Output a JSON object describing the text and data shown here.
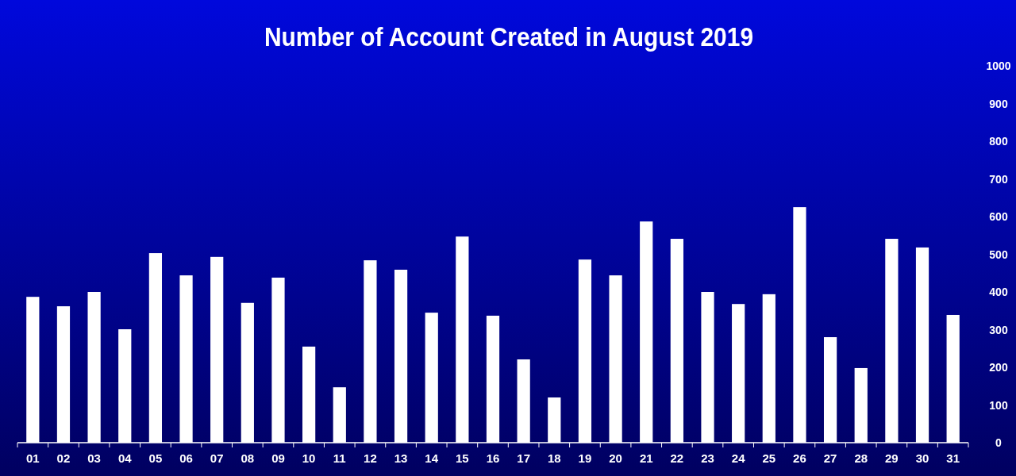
{
  "chart_data": {
    "type": "bar",
    "title": "Number of Account Created in August 2019",
    "categories": [
      "01",
      "02",
      "03",
      "04",
      "05",
      "06",
      "07",
      "08",
      "09",
      "10",
      "11",
      "12",
      "13",
      "14",
      "15",
      "16",
      "17",
      "18",
      "19",
      "20",
      "21",
      "22",
      "23",
      "24",
      "25",
      "26",
      "27",
      "28",
      "29",
      "30",
      "31"
    ],
    "values": [
      387,
      362,
      400,
      301,
      503,
      444,
      493,
      371,
      438,
      255,
      147,
      484,
      459,
      345,
      547,
      337,
      221,
      120,
      486,
      444,
      587,
      541,
      400,
      368,
      394,
      625,
      280,
      198,
      541,
      518,
      339
    ],
    "color": "#ffffff",
    "ylim": [
      0,
      1000
    ],
    "yticks": [
      0,
      100,
      200,
      300,
      400,
      500,
      600,
      700,
      800,
      900,
      1000
    ],
    "grid": false
  }
}
